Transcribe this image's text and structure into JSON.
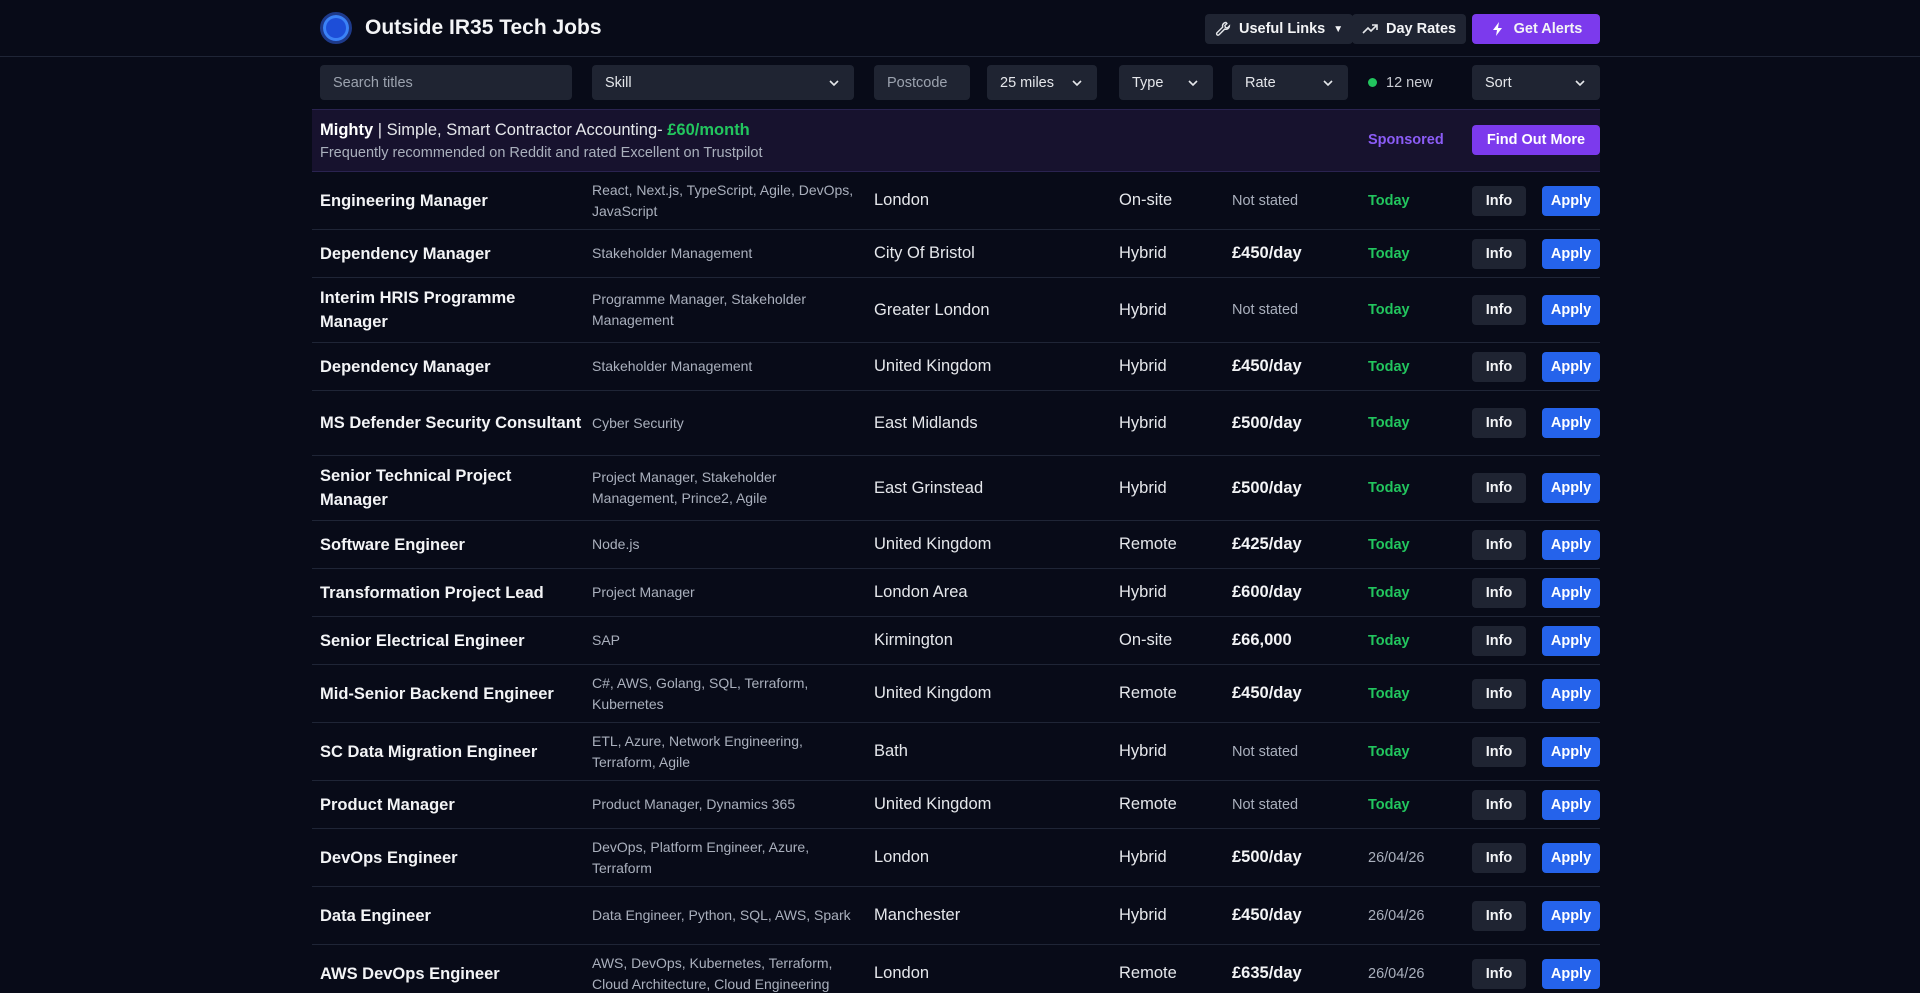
{
  "header": {
    "title": "Outside IR35 Tech Jobs",
    "useful_links": "Useful Links",
    "day_rates": "Day Rates",
    "get_alerts": "Get Alerts"
  },
  "filters": {
    "search_placeholder": "Search titles",
    "skill": "Skill",
    "postcode_placeholder": "Postcode",
    "distance": "25 miles",
    "type": "Type",
    "rate": "Rate",
    "new_count": "12 new",
    "sort": "Sort"
  },
  "sponsor": {
    "brand": "Mighty",
    "tagline": " | Simple, Smart Contractor Accounting- ",
    "price": "£60/month",
    "subtext": "Frequently recommended on Reddit and rated Excellent on Trustpilot",
    "label": "Sponsored",
    "cta": "Find Out More"
  },
  "row_actions": {
    "info": "Info",
    "apply": "Apply"
  },
  "jobs": [
    {
      "title": "Engineering Manager",
      "skills": "React, Next.js, TypeScript, Agile, DevOps, JavaScript",
      "location": "London",
      "type": "On-site",
      "rate": "Not stated",
      "date": "Today"
    },
    {
      "title": "Dependency Manager",
      "skills": "Stakeholder Management",
      "location": "City Of Bristol",
      "type": "Hybrid",
      "rate": "£450/day",
      "date": "Today"
    },
    {
      "title": "Interim HRIS Programme Manager",
      "skills": "Programme Manager, Stakeholder Management",
      "location": "Greater London",
      "type": "Hybrid",
      "rate": "Not stated",
      "date": "Today"
    },
    {
      "title": "Dependency Manager",
      "skills": "Stakeholder Management",
      "location": "United Kingdom",
      "type": "Hybrid",
      "rate": "£450/day",
      "date": "Today"
    },
    {
      "title": "MS Defender Security Consultant",
      "skills": "Cyber Security",
      "location": "East Midlands",
      "type": "Hybrid",
      "rate": "£500/day",
      "date": "Today"
    },
    {
      "title": "Senior Technical Project Manager",
      "skills": "Project Manager, Stakeholder Management, Prince2, Agile",
      "location": "East Grinstead",
      "type": "Hybrid",
      "rate": "£500/day",
      "date": "Today"
    },
    {
      "title": "Software Engineer",
      "skills": "Node.js",
      "location": "United Kingdom",
      "type": "Remote",
      "rate": "£425/day",
      "date": "Today"
    },
    {
      "title": "Transformation Project Lead",
      "skills": "Project Manager",
      "location": "London Area",
      "type": "Hybrid",
      "rate": "£600/day",
      "date": "Today"
    },
    {
      "title": "Senior Electrical Engineer",
      "skills": "SAP",
      "location": "Kirmington",
      "type": "On-site",
      "rate": "£66,000",
      "date": "Today"
    },
    {
      "title": "Mid-Senior Backend Engineer",
      "skills": "C#, AWS, Golang, SQL, Terraform, Kubernetes",
      "location": "United Kingdom",
      "type": "Remote",
      "rate": "£450/day",
      "date": "Today"
    },
    {
      "title": "SC Data Migration Engineer",
      "skills": "ETL, Azure, Network Engineering, Terraform, Agile",
      "location": "Bath",
      "type": "Hybrid",
      "rate": "Not stated",
      "date": "Today"
    },
    {
      "title": "Product Manager",
      "skills": "Product Manager, Dynamics 365",
      "location": "United Kingdom",
      "type": "Remote",
      "rate": "Not stated",
      "date": "Today"
    },
    {
      "title": "DevOps Engineer",
      "skills": "DevOps, Platform Engineer, Azure, Terraform",
      "location": "London",
      "type": "Hybrid",
      "rate": "£500/day",
      "date": "26/04/26"
    },
    {
      "title": "Data Engineer",
      "skills": "Data Engineer, Python, SQL, AWS, Spark",
      "location": "Manchester",
      "type": "Hybrid",
      "rate": "£450/day",
      "date": "26/04/26"
    },
    {
      "title": "AWS DevOps Engineer",
      "skills": "AWS, DevOps, Kubernetes, Terraform, Cloud Architecture, Cloud Engineering",
      "location": "London",
      "type": "Remote",
      "rate": "£635/day",
      "date": "26/04/26"
    }
  ]
}
